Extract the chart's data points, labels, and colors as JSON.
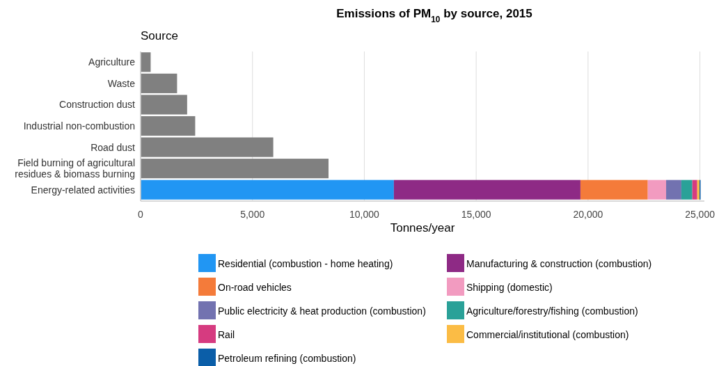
{
  "chart_data": {
    "type": "bar",
    "orientation": "horizontal",
    "stacked": true,
    "title": "Emissions of PM$_{10}$ by source, 2015",
    "ylabel": "Source",
    "xlabel": "Tonnes/year",
    "categories": [
      "Agriculture",
      "Waste",
      "Construction dust",
      "Industrial non-combustion",
      "Road dust",
      "Field burning of agricultural residues & biomass burning",
      "Energy-related activities"
    ],
    "series": [
      {
        "color": "#808080",
        "values": [
          450,
          1630,
          2080,
          2440,
          5930,
          8400,
          null
        ]
      },
      {
        "name": "Residential (combustion - home heating)",
        "color": "#2196f3",
        "values": [
          null,
          null,
          null,
          null,
          null,
          null,
          11320
        ]
      },
      {
        "name": "Manufacturing & construction (combustion)",
        "color": "#8e2a85",
        "values": [
          null,
          null,
          null,
          null,
          null,
          null,
          8340
        ]
      },
      {
        "name": "On-road vehicles",
        "color": "#f47b3a",
        "values": [
          null,
          null,
          null,
          null,
          null,
          null,
          3010
        ]
      },
      {
        "name": "Shipping (domestic)",
        "color": "#f29bc0",
        "values": [
          null,
          null,
          null,
          null,
          null,
          null,
          820
        ]
      },
      {
        "name": "Public electricity & heat production (combustion)",
        "color": "#7272b0",
        "values": [
          null,
          null,
          null,
          null,
          null,
          null,
          680
        ]
      },
      {
        "name": "Agriculture/forestry/fishing (combustion)",
        "color": "#2aa198",
        "values": [
          null,
          null,
          null,
          null,
          null,
          null,
          490
        ]
      },
      {
        "name": "Rail",
        "color": "#d63b80",
        "values": [
          null,
          null,
          null,
          null,
          null,
          null,
          220
        ]
      },
      {
        "name": "Commercial/institutional (combustion)",
        "color": "#fbbc45",
        "values": [
          null,
          null,
          null,
          null,
          null,
          null,
          100
        ]
      },
      {
        "name": "Petroleum refining (combustion)",
        "color": "#0b5ea8",
        "values": [
          null,
          null,
          null,
          null,
          null,
          null,
          50
        ]
      }
    ],
    "xlim": [
      0,
      25200
    ],
    "xticks": [
      0,
      {
        "value": 5000,
        "label": "5,000"
      },
      {
        "value": 10000,
        "label": "10,000"
      },
      {
        "value": 15000,
        "label": "15,000"
      },
      {
        "value": 20000,
        "label": "20,000"
      },
      {
        "value": 25000,
        "label": "25,000"
      }
    ],
    "grid": "x",
    "legend": "bottom"
  }
}
